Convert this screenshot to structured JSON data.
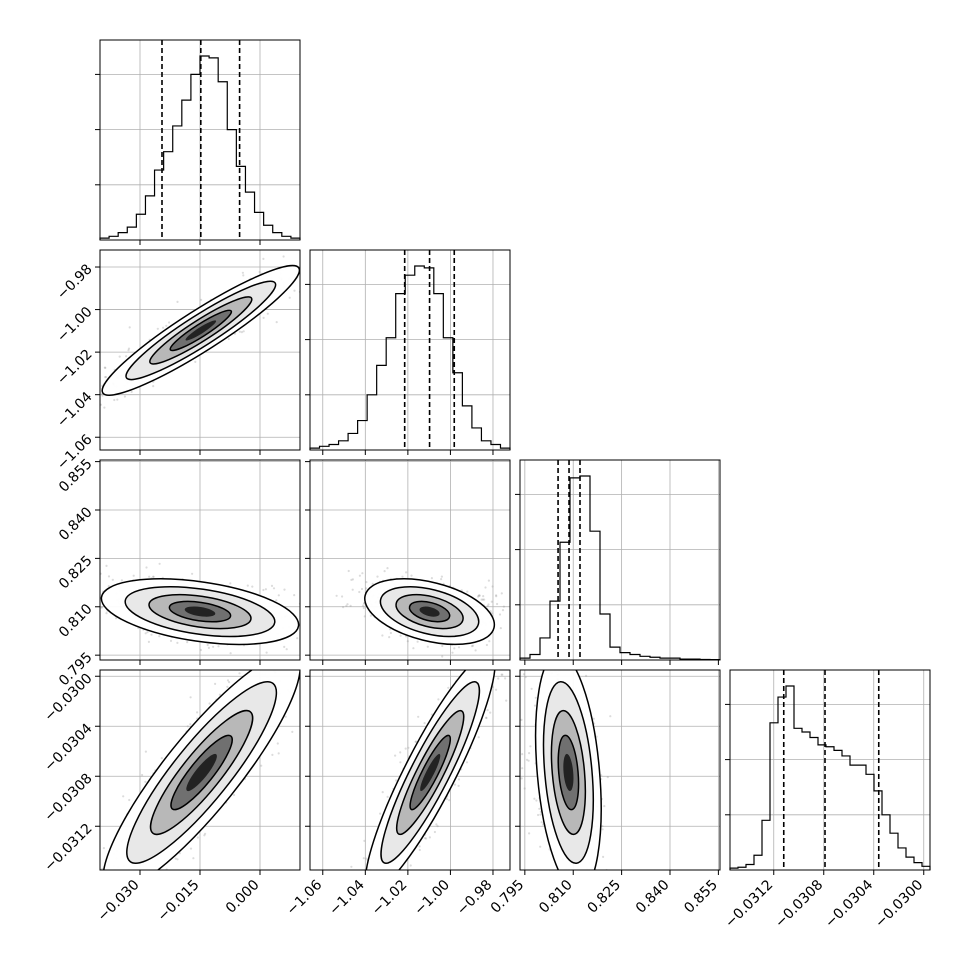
{
  "chart_data": {
    "type": "corner",
    "title": "",
    "grid": true,
    "colors": {
      "ink": "#000000",
      "grid": "#b0b0b0",
      "points": "#9a9a9a",
      "background": "#ffffff"
    },
    "parameters": [
      {
        "name": "",
        "range": [
          -0.04,
          0.01
        ],
        "ticks": [
          -0.03,
          -0.015,
          0.0
        ],
        "tick_labels": [
          "−0.030",
          "−0.015",
          "0.000"
        ],
        "quantiles": [
          -0.0245,
          -0.0148,
          -0.0051
        ],
        "hist": [
          0.01,
          0.02,
          0.04,
          0.07,
          0.14,
          0.24,
          0.38,
          0.48,
          0.62,
          0.76,
          0.9,
          1.0,
          0.99,
          0.86,
          0.6,
          0.4,
          0.26,
          0.15,
          0.08,
          0.04,
          0.02,
          0.01
        ]
      },
      {
        "name": "",
        "range": [
          -1.066,
          -0.972
        ],
        "ticks": [
          -1.06,
          -1.04,
          -1.02,
          -1.0,
          -0.98
        ],
        "tick_labels": [
          "−1.06",
          "−1.04",
          "−1.02",
          "−1.00",
          "−0.98"
        ],
        "quantiles": [
          -1.0215,
          -1.0098,
          -0.9982
        ],
        "hist": [
          0.01,
          0.02,
          0.03,
          0.05,
          0.09,
          0.16,
          0.3,
          0.46,
          0.61,
          0.85,
          0.95,
          1.0,
          0.99,
          0.85,
          0.61,
          0.42,
          0.24,
          0.12,
          0.05,
          0.03,
          0.01
        ]
      },
      {
        "name": "",
        "range": [
          0.7935,
          0.8555
        ],
        "ticks": [
          0.795,
          0.81,
          0.825,
          0.84,
          0.855
        ],
        "tick_labels": [
          "0.795",
          "0.810",
          "0.825",
          "0.840",
          "0.855"
        ],
        "quantiles": [
          0.8053,
          0.8087,
          0.8121
        ],
        "hist": [
          0.01,
          0.03,
          0.12,
          0.32,
          0.64,
          0.99,
          1.0,
          0.7,
          0.25,
          0.07,
          0.04,
          0.03,
          0.02,
          0.015,
          0.01,
          0.01,
          0.005,
          0.005,
          0.003,
          0.002
        ]
      },
      {
        "name": "",
        "range": [
          -0.03155,
          -0.02995
        ],
        "ticks": [
          -0.0312,
          -0.0308,
          -0.0304,
          -0.03
        ],
        "tick_labels": [
          "−0.0312",
          "−0.0308",
          "−0.0304",
          "−0.0300"
        ],
        "quantiles": [
          -0.03112,
          -0.03079,
          -0.03036
        ],
        "hist": [
          0.01,
          0.015,
          0.03,
          0.08,
          0.27,
          0.8,
          0.94,
          1.0,
          0.77,
          0.75,
          0.72,
          0.68,
          0.67,
          0.65,
          0.62,
          0.57,
          0.57,
          0.52,
          0.43,
          0.3,
          0.2,
          0.12,
          0.07,
          0.04,
          0.02
        ]
      }
    ],
    "pairs": [
      {
        "x": 0,
        "y": 1,
        "center": [
          -0.0148,
          -1.0098
        ],
        "sd": [
          0.0085,
          0.0105
        ],
        "corr": 0.93
      },
      {
        "x": 0,
        "y": 2,
        "center": [
          -0.015,
          0.8085
        ],
        "sd": [
          0.0085,
          0.0035
        ],
        "corr": -0.4
      },
      {
        "x": 1,
        "y": 2,
        "center": [
          -1.0098,
          0.8085
        ],
        "sd": [
          0.0105,
          0.0035
        ],
        "corr": -0.4
      },
      {
        "x": 0,
        "y": 3,
        "center": [
          -0.0146,
          -0.03077
        ],
        "sd": [
          0.0085,
          0.00033
        ],
        "corr": 0.88
      },
      {
        "x": 1,
        "y": 3,
        "center": [
          -1.0095,
          -0.03077
        ],
        "sd": [
          0.0105,
          0.00033
        ],
        "corr": 0.9
      },
      {
        "x": 2,
        "y": 3,
        "center": [
          0.8085,
          -0.03077
        ],
        "sd": [
          0.0035,
          0.00033
        ],
        "corr": -0.3
      }
    ]
  }
}
